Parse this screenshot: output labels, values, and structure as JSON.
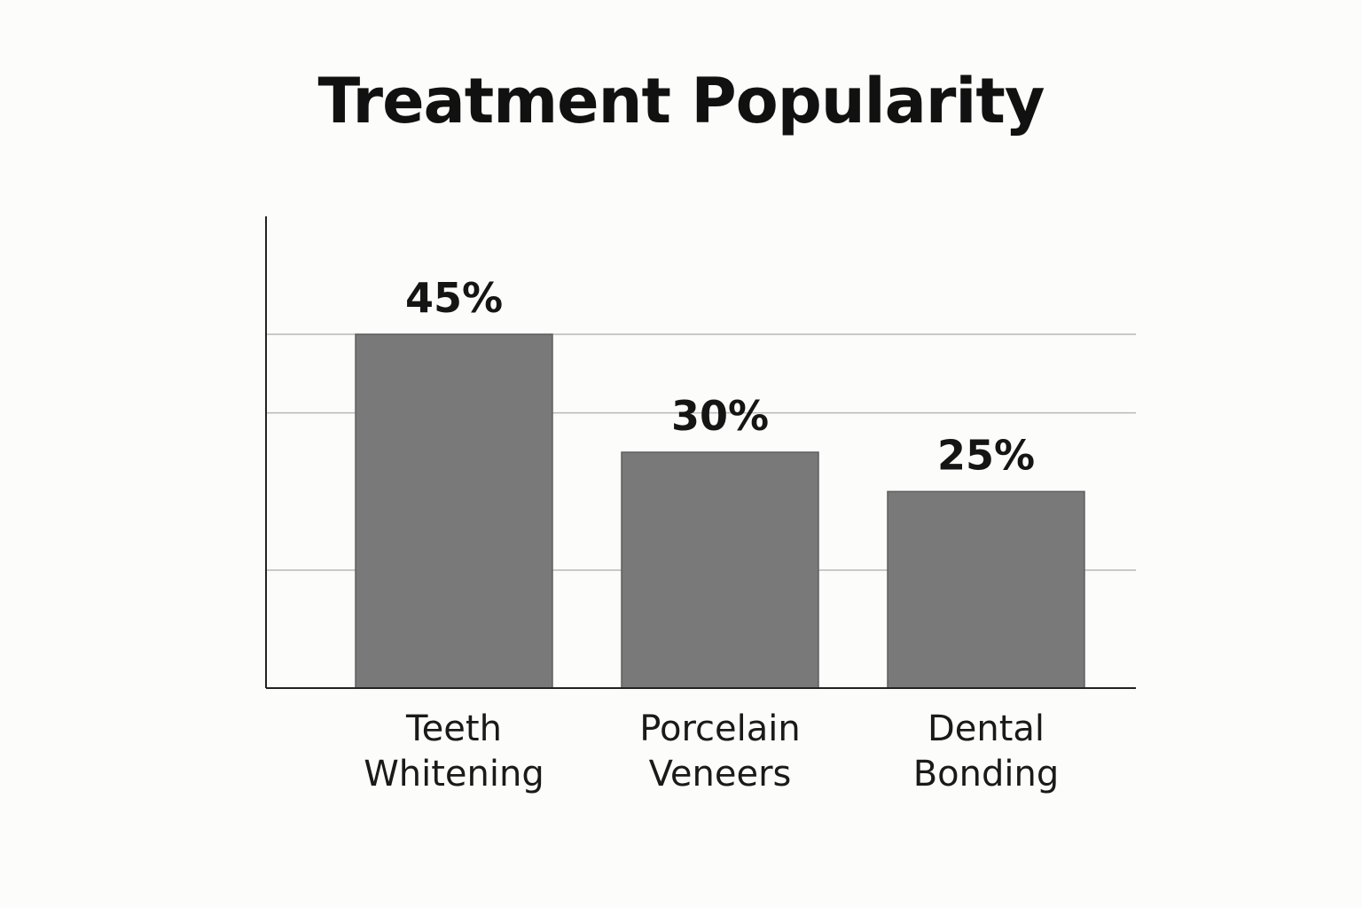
{
  "chart_data": {
    "type": "bar",
    "title": "Treatment Popularity",
    "categories": [
      [
        "Teeth",
        "Whitening"
      ],
      [
        "Porcelain",
        "Veneers"
      ],
      [
        "Dental",
        "Bonding"
      ]
    ],
    "values": [
      45,
      30,
      25
    ],
    "value_labels": [
      "45%",
      "30%",
      "25%"
    ],
    "ylim": [
      0,
      60
    ],
    "grid": true,
    "bar_color": "#7a797a",
    "axis_color": "#222222",
    "grid_color": "#b8b8b8"
  }
}
